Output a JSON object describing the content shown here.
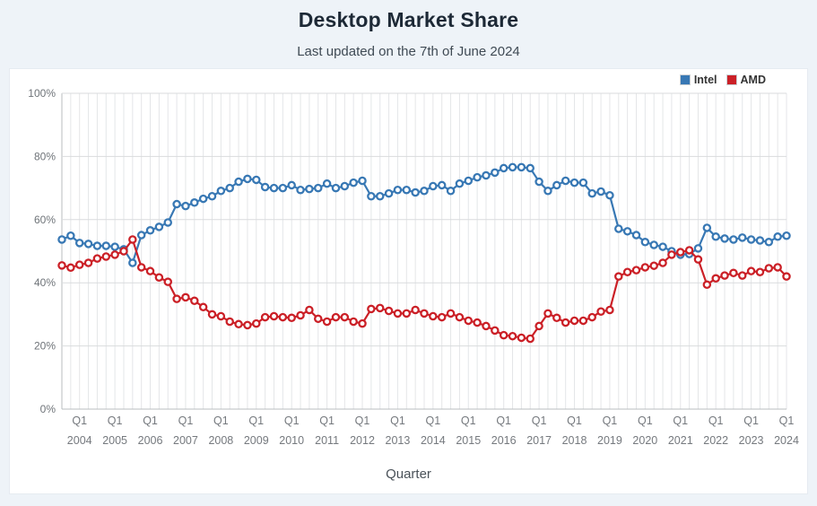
{
  "header": {
    "title": "Desktop Market Share",
    "subtitle": "Last updated on the 7th of June 2024"
  },
  "chart": {
    "legend": [
      {
        "label": "Intel",
        "color": "#3878b4"
      },
      {
        "label": "AMD",
        "color": "#cb2027"
      }
    ],
    "xlabel": "Quarter"
  },
  "chart_data": {
    "type": "line",
    "title": "Desktop Market Share",
    "subtitle": "Last updated on the 7th of June 2024",
    "xlabel": "Quarter",
    "ylabel": "",
    "ylim": [
      0,
      100
    ],
    "grid": true,
    "legend_position": "top-right",
    "marker": "open-circle",
    "y_ticks": [
      "0%",
      "20%",
      "40%",
      "60%",
      "80%",
      "100%"
    ],
    "x_tick_quarter": "Q1",
    "x_tick_years": [
      "2004",
      "2005",
      "2006",
      "2007",
      "2008",
      "2009",
      "2010",
      "2011",
      "2012",
      "2013",
      "2014",
      "2015",
      "2016",
      "2017",
      "2018",
      "2019",
      "2020",
      "2021",
      "2022",
      "2023",
      "2024"
    ],
    "categories": [
      "2003-Q3",
      "2003-Q4",
      "2004-Q1",
      "2004-Q2",
      "2004-Q3",
      "2004-Q4",
      "2005-Q1",
      "2005-Q2",
      "2005-Q3",
      "2005-Q4",
      "2006-Q1",
      "2006-Q2",
      "2006-Q3",
      "2006-Q4",
      "2007-Q1",
      "2007-Q2",
      "2007-Q3",
      "2007-Q4",
      "2008-Q1",
      "2008-Q2",
      "2008-Q3",
      "2008-Q4",
      "2009-Q1",
      "2009-Q2",
      "2009-Q3",
      "2009-Q4",
      "2010-Q1",
      "2010-Q2",
      "2010-Q3",
      "2010-Q4",
      "2011-Q1",
      "2011-Q2",
      "2011-Q3",
      "2011-Q4",
      "2012-Q1",
      "2012-Q2",
      "2012-Q3",
      "2012-Q4",
      "2013-Q1",
      "2013-Q2",
      "2013-Q3",
      "2013-Q4",
      "2014-Q1",
      "2014-Q2",
      "2014-Q3",
      "2014-Q4",
      "2015-Q1",
      "2015-Q2",
      "2015-Q3",
      "2015-Q4",
      "2016-Q1",
      "2016-Q2",
      "2016-Q3",
      "2016-Q4",
      "2017-Q1",
      "2017-Q2",
      "2017-Q3",
      "2017-Q4",
      "2018-Q1",
      "2018-Q2",
      "2018-Q3",
      "2018-Q4",
      "2019-Q1",
      "2019-Q2",
      "2019-Q3",
      "2019-Q4",
      "2020-Q1",
      "2020-Q2",
      "2020-Q3",
      "2020-Q4",
      "2021-Q1",
      "2021-Q2",
      "2021-Q3",
      "2021-Q4",
      "2022-Q1",
      "2022-Q2",
      "2022-Q3",
      "2022-Q4",
      "2023-Q1",
      "2023-Q2",
      "2023-Q3",
      "2023-Q4",
      "2024-Q1"
    ],
    "series": [
      {
        "name": "Intel",
        "color": "#3878b4",
        "values": [
          53.7,
          54.9,
          52.6,
          52.3,
          51.7,
          51.7,
          51.4,
          50.6,
          46.3,
          55.1,
          56.6,
          57.7,
          59.1,
          64.9,
          64.3,
          65.4,
          66.6,
          67.4,
          69.1,
          70.0,
          72.0,
          72.9,
          72.6,
          70.3,
          70.0,
          70.0,
          70.9,
          69.4,
          69.7,
          70.0,
          71.4,
          70.0,
          70.6,
          71.7,
          72.3,
          67.4,
          67.4,
          68.3,
          69.4,
          69.4,
          68.6,
          69.1,
          70.6,
          70.9,
          69.1,
          71.4,
          72.3,
          73.4,
          74.0,
          74.9,
          76.3,
          76.6,
          76.6,
          76.3,
          72.0,
          69.1,
          70.9,
          72.3,
          71.7,
          71.7,
          68.3,
          68.9,
          67.7,
          57.1,
          56.3,
          55.1,
          52.9,
          52.0,
          51.4,
          50.0,
          48.9,
          49.1,
          50.9,
          57.4,
          54.6,
          54.0,
          53.7,
          54.3,
          53.7,
          53.4,
          52.9,
          54.6,
          54.9
        ]
      },
      {
        "name": "AMD",
        "color": "#cb2027",
        "values": [
          45.5,
          44.8,
          45.7,
          46.3,
          47.7,
          48.3,
          48.9,
          50.0,
          53.7,
          44.9,
          43.7,
          41.7,
          40.3,
          34.9,
          35.4,
          34.3,
          32.3,
          30.0,
          29.4,
          27.7,
          26.9,
          26.6,
          27.1,
          29.1,
          29.4,
          29.1,
          28.9,
          29.7,
          31.4,
          28.6,
          27.7,
          29.1,
          29.1,
          27.7,
          27.1,
          31.7,
          32.0,
          31.1,
          30.3,
          30.3,
          31.4,
          30.3,
          29.4,
          29.1,
          30.3,
          29.1,
          28.0,
          27.4,
          26.3,
          24.9,
          23.4,
          23.1,
          22.6,
          22.3,
          26.3,
          30.3,
          28.9,
          27.4,
          28.0,
          28.0,
          29.1,
          30.9,
          31.4,
          42.0,
          43.4,
          44.0,
          44.9,
          45.4,
          46.3,
          48.9,
          49.7,
          50.3,
          47.4,
          39.4,
          41.4,
          42.3,
          43.1,
          42.3,
          43.7,
          43.4,
          44.6,
          44.9,
          42.0
        ]
      }
    ]
  }
}
